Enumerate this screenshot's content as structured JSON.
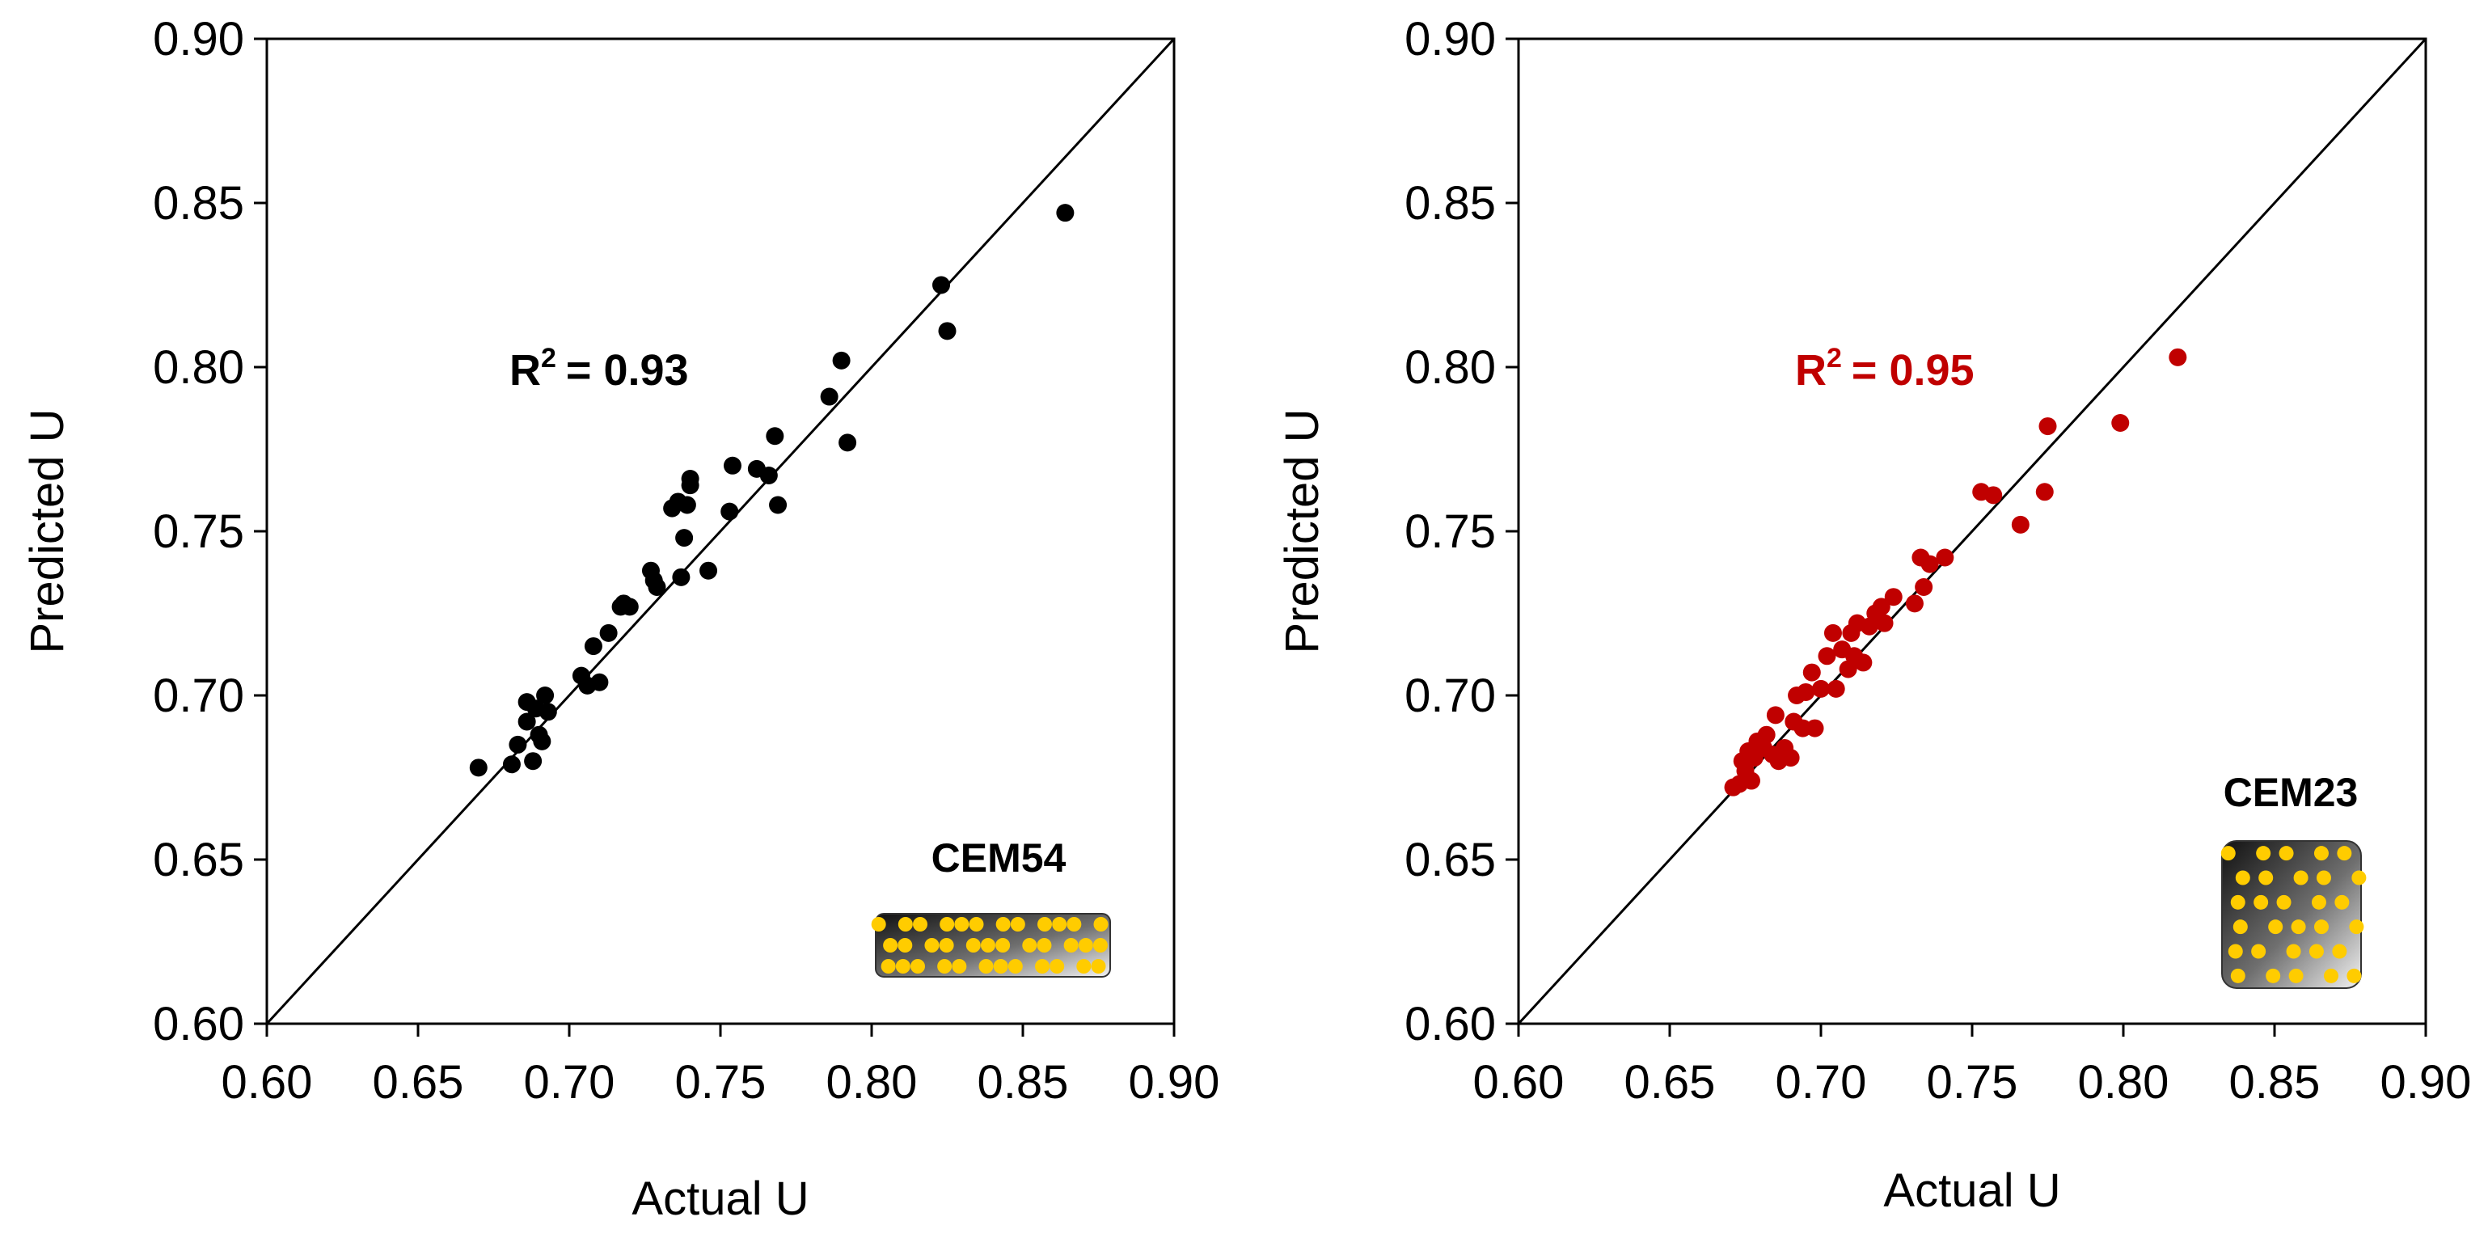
{
  "chart_data": [
    {
      "type": "scatter",
      "xlabel": "Actual U",
      "ylabel": "Predicted U",
      "xlim": [
        0.6,
        0.9
      ],
      "ylim": [
        0.6,
        0.9
      ],
      "xticks": [
        "0.60",
        "0.65",
        "0.70",
        "0.75",
        "0.80",
        "0.85",
        "0.90"
      ],
      "yticks": [
        "0.60",
        "0.65",
        "0.70",
        "0.75",
        "0.80",
        "0.85",
        "0.90"
      ],
      "grid": false,
      "reference_line": "y = x",
      "annotation": {
        "r2_prefix": "R",
        "r2_sup": "2",
        "r2_value": "= 0.93",
        "color": "#000000"
      },
      "inset_label": "CEM54",
      "inset_shape": "wide",
      "marker_color": "#000000",
      "points": [
        {
          "x": 0.67,
          "y": 0.678
        },
        {
          "x": 0.681,
          "y": 0.679
        },
        {
          "x": 0.683,
          "y": 0.685
        },
        {
          "x": 0.686,
          "y": 0.692
        },
        {
          "x": 0.686,
          "y": 0.698
        },
        {
          "x": 0.688,
          "y": 0.68
        },
        {
          "x": 0.689,
          "y": 0.696
        },
        {
          "x": 0.69,
          "y": 0.688
        },
        {
          "x": 0.691,
          "y": 0.686
        },
        {
          "x": 0.692,
          "y": 0.7
        },
        {
          "x": 0.693,
          "y": 0.695
        },
        {
          "x": 0.704,
          "y": 0.706
        },
        {
          "x": 0.706,
          "y": 0.703
        },
        {
          "x": 0.708,
          "y": 0.715
        },
        {
          "x": 0.71,
          "y": 0.704
        },
        {
          "x": 0.713,
          "y": 0.719
        },
        {
          "x": 0.717,
          "y": 0.727
        },
        {
          "x": 0.718,
          "y": 0.728
        },
        {
          "x": 0.72,
          "y": 0.727
        },
        {
          "x": 0.727,
          "y": 0.738
        },
        {
          "x": 0.728,
          "y": 0.735
        },
        {
          "x": 0.729,
          "y": 0.733
        },
        {
          "x": 0.734,
          "y": 0.757
        },
        {
          "x": 0.736,
          "y": 0.759
        },
        {
          "x": 0.737,
          "y": 0.736
        },
        {
          "x": 0.738,
          "y": 0.748
        },
        {
          "x": 0.739,
          "y": 0.758
        },
        {
          "x": 0.74,
          "y": 0.764
        },
        {
          "x": 0.74,
          "y": 0.766
        },
        {
          "x": 0.746,
          "y": 0.738
        },
        {
          "x": 0.753,
          "y": 0.756
        },
        {
          "x": 0.754,
          "y": 0.77
        },
        {
          "x": 0.762,
          "y": 0.769
        },
        {
          "x": 0.766,
          "y": 0.767
        },
        {
          "x": 0.768,
          "y": 0.779
        },
        {
          "x": 0.769,
          "y": 0.758
        },
        {
          "x": 0.786,
          "y": 0.791
        },
        {
          "x": 0.79,
          "y": 0.802
        },
        {
          "x": 0.792,
          "y": 0.777
        },
        {
          "x": 0.823,
          "y": 0.825
        },
        {
          "x": 0.825,
          "y": 0.811
        },
        {
          "x": 0.864,
          "y": 0.847
        }
      ]
    },
    {
      "type": "scatter",
      "xlabel": "Actual U",
      "ylabel": "Predicted U",
      "xlim": [
        0.6,
        0.9
      ],
      "ylim": [
        0.6,
        0.9
      ],
      "xticks": [
        "0.60",
        "0.65",
        "0.70",
        "0.75",
        "0.80",
        "0.85",
        "0.90"
      ],
      "yticks": [
        "0.60",
        "0.65",
        "0.70",
        "0.75",
        "0.80",
        "0.85",
        "0.90"
      ],
      "grid": false,
      "reference_line": "y = x",
      "annotation": {
        "r2_prefix": "R",
        "r2_sup": "2",
        "r2_value": "= 0.95",
        "color": "#c00000"
      },
      "inset_label": "CEM23",
      "inset_shape": "square",
      "marker_color": "#c00000",
      "points": [
        {
          "x": 0.671,
          "y": 0.672
        },
        {
          "x": 0.673,
          "y": 0.673
        },
        {
          "x": 0.674,
          "y": 0.68
        },
        {
          "x": 0.675,
          "y": 0.677
        },
        {
          "x": 0.676,
          "y": 0.683
        },
        {
          "x": 0.677,
          "y": 0.674
        },
        {
          "x": 0.678,
          "y": 0.681
        },
        {
          "x": 0.679,
          "y": 0.686
        },
        {
          "x": 0.681,
          "y": 0.684
        },
        {
          "x": 0.682,
          "y": 0.688
        },
        {
          "x": 0.684,
          "y": 0.682
        },
        {
          "x": 0.685,
          "y": 0.694
        },
        {
          "x": 0.686,
          "y": 0.68
        },
        {
          "x": 0.688,
          "y": 0.684
        },
        {
          "x": 0.69,
          "y": 0.681
        },
        {
          "x": 0.691,
          "y": 0.692
        },
        {
          "x": 0.692,
          "y": 0.7
        },
        {
          "x": 0.694,
          "y": 0.69
        },
        {
          "x": 0.695,
          "y": 0.701
        },
        {
          "x": 0.697,
          "y": 0.707
        },
        {
          "x": 0.698,
          "y": 0.69
        },
        {
          "x": 0.7,
          "y": 0.702
        },
        {
          "x": 0.702,
          "y": 0.712
        },
        {
          "x": 0.704,
          "y": 0.719
        },
        {
          "x": 0.705,
          "y": 0.702
        },
        {
          "x": 0.707,
          "y": 0.714
        },
        {
          "x": 0.709,
          "y": 0.708
        },
        {
          "x": 0.71,
          "y": 0.719
        },
        {
          "x": 0.711,
          "y": 0.712
        },
        {
          "x": 0.712,
          "y": 0.722
        },
        {
          "x": 0.714,
          "y": 0.71
        },
        {
          "x": 0.716,
          "y": 0.721
        },
        {
          "x": 0.718,
          "y": 0.725
        },
        {
          "x": 0.72,
          "y": 0.727
        },
        {
          "x": 0.721,
          "y": 0.722
        },
        {
          "x": 0.724,
          "y": 0.73
        },
        {
          "x": 0.731,
          "y": 0.728
        },
        {
          "x": 0.733,
          "y": 0.742
        },
        {
          "x": 0.734,
          "y": 0.733
        },
        {
          "x": 0.736,
          "y": 0.74
        },
        {
          "x": 0.741,
          "y": 0.742
        },
        {
          "x": 0.753,
          "y": 0.762
        },
        {
          "x": 0.757,
          "y": 0.761
        },
        {
          "x": 0.766,
          "y": 0.752
        },
        {
          "x": 0.774,
          "y": 0.762
        },
        {
          "x": 0.775,
          "y": 0.782
        },
        {
          "x": 0.799,
          "y": 0.783
        },
        {
          "x": 0.818,
          "y": 0.803
        }
      ]
    }
  ]
}
